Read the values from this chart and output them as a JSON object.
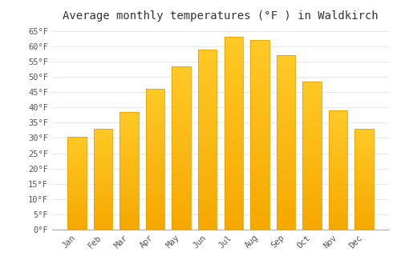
{
  "title": "Average monthly temperatures (°F ) in Waldkirch",
  "months": [
    "Jan",
    "Feb",
    "Mar",
    "Apr",
    "May",
    "Jun",
    "Jul",
    "Aug",
    "Sep",
    "Oct",
    "Nov",
    "Dec"
  ],
  "values": [
    30.5,
    33.0,
    38.5,
    46.0,
    53.5,
    59.0,
    63.0,
    62.0,
    57.0,
    48.5,
    39.0,
    33.0
  ],
  "bar_color_top": "#FFC926",
  "bar_color_bottom": "#F5A800",
  "bar_edge_color": "#E8A000",
  "background_color": "#FFFFFF",
  "grid_color": "#E8E8E8",
  "ytick_min": 0,
  "ytick_max": 65,
  "ytick_step": 5,
  "title_fontsize": 10,
  "tick_fontsize": 7.5,
  "font_family": "monospace"
}
